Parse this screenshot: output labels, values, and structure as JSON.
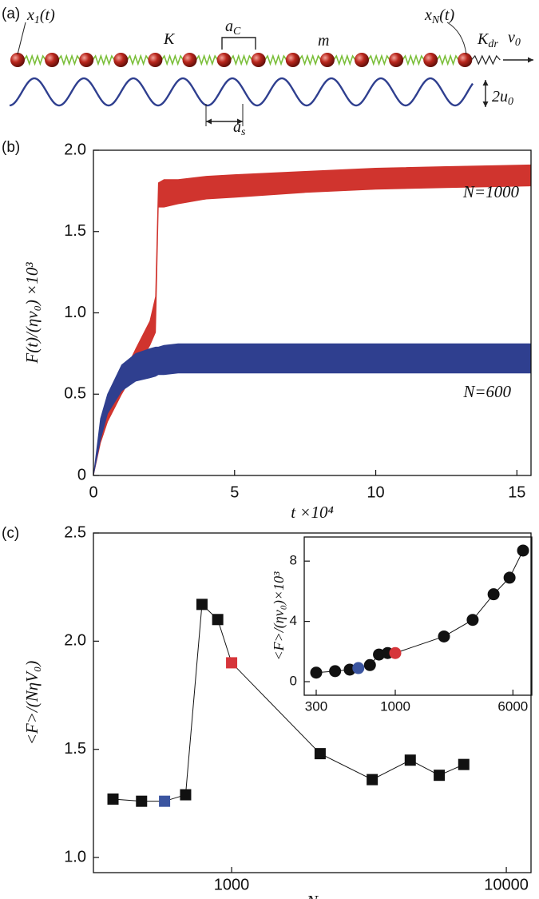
{
  "diagram": {
    "label": "(a)",
    "labels": [
      {
        "text": "x",
        "sub": "1",
        "tail": "(t)"
      },
      {
        "text": "K"
      },
      {
        "text": "a",
        "sub": "C"
      },
      {
        "text": "m"
      },
      {
        "text": "x",
        "sub": "N",
        "tail": "(t)"
      },
      {
        "text": "K",
        "sub": "dr"
      },
      {
        "text": "v",
        "sub": "0"
      },
      {
        "text": "2u",
        "sub": "0"
      },
      {
        "text": "a",
        "sub": "s"
      }
    ]
  },
  "chart_data": [
    {
      "type": "band",
      "label": "(b)",
      "xlabel": "t ×10⁴",
      "ylabel": "F(t)/(ηv₀) ×10³",
      "x": [
        0,
        0.25,
        0.5,
        1,
        1.5,
        2,
        2.2,
        2.3,
        2.5,
        3,
        4,
        5,
        7.5,
        10,
        12.5,
        15.5
      ],
      "series": [
        {
          "name": "N=1000",
          "color": "#d0342e",
          "values": [
            0,
            0.3,
            0.42,
            0.6,
            0.78,
            0.95,
            1.1,
            1.8,
            1.82,
            1.82,
            1.84,
            1.85,
            1.87,
            1.89,
            1.9,
            1.91
          ],
          "lower": [
            0,
            0.2,
            0.33,
            0.5,
            0.65,
            0.8,
            0.88,
            1.65,
            1.65,
            1.67,
            1.7,
            1.71,
            1.74,
            1.76,
            1.77,
            1.78
          ]
        },
        {
          "name": "N=600",
          "color": "#2f3f8f",
          "values": [
            0,
            0.35,
            0.5,
            0.68,
            0.75,
            0.78,
            0.79,
            0.79,
            0.8,
            0.81,
            0.81,
            0.81,
            0.81,
            0.81,
            0.81,
            0.81
          ],
          "lower": [
            0,
            0.22,
            0.38,
            0.52,
            0.58,
            0.6,
            0.61,
            0.62,
            0.62,
            0.63,
            0.63,
            0.63,
            0.63,
            0.63,
            0.63,
            0.63
          ]
        }
      ],
      "xlim": [
        0,
        15.5
      ],
      "ylim": [
        0,
        2.0
      ],
      "xticks": [
        0,
        5,
        10,
        15
      ],
      "yticks": [
        0,
        0.5,
        {
          "value": 1,
          "label": "1.0"
        },
        1.5,
        {
          "value": 2,
          "label": "2.0"
        }
      ]
    },
    {
      "type": "line",
      "label": "(c)",
      "xlabel": "N",
      "ylabel": "<F>/(NηV₀)",
      "xscale": "log",
      "marker": "square",
      "line_color": "#111111",
      "x": [
        370,
        470,
        570,
        680,
        780,
        890,
        1000,
        2100,
        3250,
        4470,
        5700,
        7000
      ],
      "values": [
        1.27,
        1.26,
        1.26,
        1.29,
        2.17,
        2.1,
        1.9,
        1.48,
        1.36,
        1.45,
        1.38,
        1.43
      ],
      "point_colors": [
        "#111111",
        "#111111",
        "#3b55a0",
        "#111111",
        "#111111",
        "#111111",
        "#d6353a",
        "#111111",
        "#111111",
        "#111111",
        "#111111",
        "#111111"
      ],
      "xlim": [
        314,
        12300
      ],
      "ylim": [
        0.93,
        2.5
      ],
      "xticks": [
        1000,
        10000
      ],
      "yticks": [
        {
          "value": 1,
          "label": "1.0"
        },
        1.5,
        {
          "value": 2,
          "label": "2.0"
        },
        2.5
      ]
    },
    {
      "type": "line",
      "ylabel": "<F>/(ηv₀)×10³",
      "xscale": "log",
      "marker": "circle",
      "line_color": "#111111",
      "x": [
        300,
        400,
        500,
        570,
        680,
        780,
        890,
        1000,
        2100,
        3250,
        4470,
        5700,
        7000
      ],
      "values": [
        0.6,
        0.7,
        0.8,
        0.9,
        1.1,
        1.8,
        1.9,
        1.9,
        3.0,
        4.1,
        5.8,
        6.9,
        8.7
      ],
      "point_colors": [
        "#111111",
        "#111111",
        "#111111",
        "#3b55a0",
        "#111111",
        "#111111",
        "#111111",
        "#d6353a",
        "#111111",
        "#111111",
        "#111111",
        "#111111",
        "#111111"
      ],
      "xlim": [
        250,
        8000
      ],
      "ylim": [
        -0.9,
        9.6
      ],
      "xticks": [
        300,
        1000,
        6000
      ],
      "yticks": [
        0,
        4,
        8
      ]
    }
  ]
}
